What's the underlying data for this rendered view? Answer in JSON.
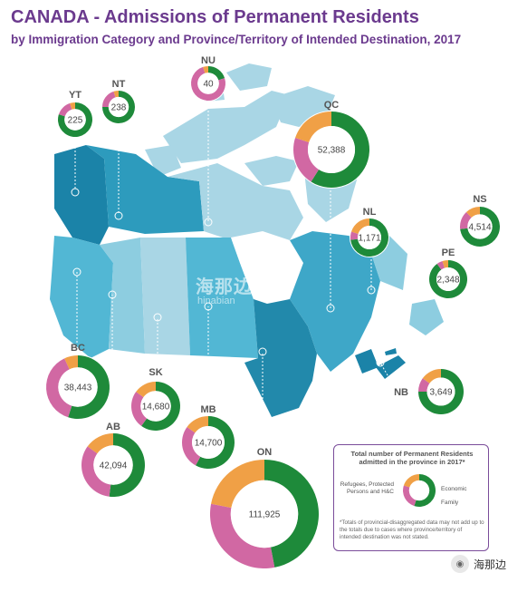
{
  "title": "CANADA - Admissions of Permanent Residents",
  "subtitle": "by Immigration Category and Province/Territory of Intended Destination, 2017",
  "colors": {
    "economic": "#1e8a3a",
    "family": "#d168a3",
    "refugees": "#f0a046",
    "title": "#6b3a8e"
  },
  "provinces": [
    {
      "code": "YT",
      "value": "225",
      "economic": 0.8,
      "family": 0.15,
      "refugees": 0.05
    },
    {
      "code": "NT",
      "value": "238",
      "economic": 0.75,
      "family": 0.2,
      "refugees": 0.05
    },
    {
      "code": "NU",
      "value": "40",
      "economic": 0.2,
      "family": 0.75,
      "refugees": 0.05
    },
    {
      "code": "QC",
      "value": "52,388",
      "economic": 0.59,
      "family": 0.21,
      "refugees": 0.2
    },
    {
      "code": "NL",
      "value": "1,171",
      "economic": 0.73,
      "family": 0.07,
      "refugees": 0.2
    },
    {
      "code": "NS",
      "value": "4,514",
      "economic": 0.73,
      "family": 0.15,
      "refugees": 0.12
    },
    {
      "code": "PE",
      "value": "2,348",
      "economic": 0.9,
      "family": 0.05,
      "refugees": 0.05
    },
    {
      "code": "NB",
      "value": "3,649",
      "economic": 0.75,
      "family": 0.1,
      "refugees": 0.15
    },
    {
      "code": "BC",
      "value": "38,443",
      "economic": 0.55,
      "family": 0.38,
      "refugees": 0.07
    },
    {
      "code": "AB",
      "value": "42,094",
      "economic": 0.52,
      "family": 0.33,
      "refugees": 0.15
    },
    {
      "code": "SK",
      "value": "14,680",
      "economic": 0.6,
      "family": 0.25,
      "refugees": 0.15
    },
    {
      "code": "MB",
      "value": "14,700",
      "economic": 0.58,
      "family": 0.27,
      "refugees": 0.15
    },
    {
      "code": "ON",
      "value": "111,925",
      "economic": 0.47,
      "family": 0.31,
      "refugees": 0.22
    }
  ],
  "legend": {
    "title": "Total number of Permanent Residents admitted in the province in 2017*",
    "refugees": "Refugees, Protected Persons and H&C",
    "economic": "Economic",
    "family": "Family",
    "note": "*Totals of provincial-disaggregated data may not add up to the totals due to cases where province/territory of intended destination was not stated."
  },
  "watermark": {
    "cn": "海那边",
    "en": "hinabian"
  },
  "brand": {
    "name": "海那边"
  }
}
